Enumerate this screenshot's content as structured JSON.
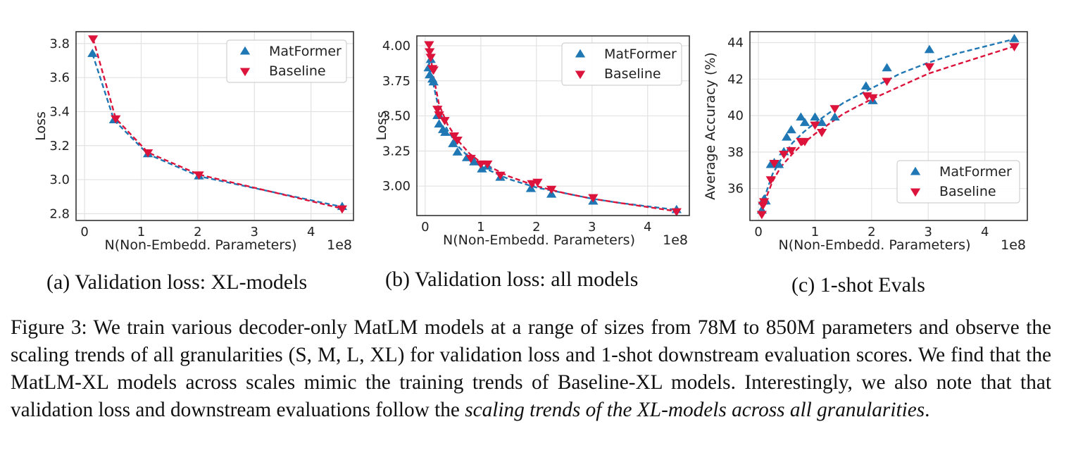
{
  "colors": {
    "matformer": "#1f77b4",
    "baseline": "#dc143c",
    "grid": "#e2e2e2",
    "frame": "#333333"
  },
  "chart_data": [
    {
      "type": "line",
      "marker_style": "scatter with dashed fit",
      "xlabel": "N(Non-Embedd. Parameters)",
      "x_offset_text": "1e8",
      "ylabel": "Loss",
      "xlim": [
        -0.15,
        4.75
      ],
      "ylim": [
        2.76,
        3.87
      ],
      "xticks": [
        0,
        1,
        2,
        3,
        4
      ],
      "yticks": [
        2.8,
        3.0,
        3.2,
        3.4,
        3.6,
        3.8
      ],
      "ytick_labels": [
        "2.8",
        "3.0",
        "3.2",
        "3.4",
        "3.6",
        "3.8"
      ],
      "grid": true,
      "legend": "top-right",
      "series": [
        {
          "name": "MatFormer",
          "marker": "triangle-up",
          "points": [
            [
              0.14,
              3.74
            ],
            [
              0.52,
              3.35
            ],
            [
              1.12,
              3.15
            ],
            [
              2.02,
              3.02
            ],
            [
              4.55,
              2.84
            ]
          ],
          "fit": [
            [
              0.14,
              3.74
            ],
            [
              0.52,
              3.35
            ],
            [
              1.12,
              3.15
            ],
            [
              2.02,
              3.02
            ],
            [
              4.55,
              2.84
            ]
          ]
        },
        {
          "name": "Baseline",
          "marker": "triangle-down",
          "points": [
            [
              0.15,
              3.83
            ],
            [
              0.55,
              3.36
            ],
            [
              1.12,
              3.16
            ],
            [
              2.02,
              3.03
            ],
            [
              4.55,
              2.83
            ]
          ],
          "fit": [
            [
              0.15,
              3.83
            ],
            [
              0.55,
              3.36
            ],
            [
              1.12,
              3.16
            ],
            [
              2.02,
              3.03
            ],
            [
              4.55,
              2.83
            ]
          ]
        }
      ]
    },
    {
      "type": "line",
      "marker_style": "scatter with dashed fit",
      "xlabel": "N(Non-Embedd. Parameters)",
      "x_offset_text": "1e8",
      "ylabel": "Loss",
      "xlim": [
        -0.15,
        4.75
      ],
      "ylim": [
        2.79,
        4.07
      ],
      "xticks": [
        0,
        1,
        2,
        3,
        4
      ],
      "yticks": [
        3.0,
        3.25,
        3.5,
        3.75,
        4.0
      ],
      "ytick_labels": [
        "3.00",
        "3.25",
        "3.50",
        "3.75",
        "4.00"
      ],
      "grid": true,
      "legend": "top-right",
      "series": [
        {
          "name": "MatFormer",
          "marker": "triangle-up",
          "points": [
            [
              0.06,
              3.84
            ],
            [
              0.08,
              3.79
            ],
            [
              0.1,
              3.9
            ],
            [
              0.13,
              3.76
            ],
            [
              0.15,
              3.74
            ],
            [
              0.22,
              3.5
            ],
            [
              0.25,
              3.44
            ],
            [
              0.32,
              3.4
            ],
            [
              0.36,
              3.38
            ],
            [
              0.5,
              3.3
            ],
            [
              0.58,
              3.24
            ],
            [
              0.75,
              3.2
            ],
            [
              0.88,
              3.17
            ],
            [
              1.02,
              3.12
            ],
            [
              1.12,
              3.14
            ],
            [
              1.35,
              3.06
            ],
            [
              1.9,
              2.98
            ],
            [
              2.27,
              2.94
            ],
            [
              3.02,
              2.89
            ],
            [
              4.52,
              2.83
            ]
          ],
          "fit": [
            [
              0.06,
              3.9
            ],
            [
              0.15,
              3.72
            ],
            [
              0.25,
              3.54
            ],
            [
              0.4,
              3.4
            ],
            [
              0.6,
              3.28
            ],
            [
              0.8,
              3.2
            ],
            [
              1.0,
              3.14
            ],
            [
              1.5,
              3.05
            ],
            [
              2.0,
              2.99
            ],
            [
              2.5,
              2.95
            ],
            [
              3.0,
              2.91
            ],
            [
              3.5,
              2.88
            ],
            [
              4.52,
              2.83
            ]
          ]
        },
        {
          "name": "Baseline",
          "marker": "triangle-down",
          "points": [
            [
              0.07,
              4.01
            ],
            [
              0.08,
              3.96
            ],
            [
              0.1,
              3.92
            ],
            [
              0.13,
              3.84
            ],
            [
              0.15,
              3.83
            ],
            [
              0.22,
              3.55
            ],
            [
              0.25,
              3.51
            ],
            [
              0.35,
              3.47
            ],
            [
              0.52,
              3.36
            ],
            [
              0.58,
              3.33
            ],
            [
              0.82,
              3.2
            ],
            [
              1.0,
              3.16
            ],
            [
              1.12,
              3.16
            ],
            [
              1.35,
              3.08
            ],
            [
              1.92,
              3.02
            ],
            [
              2.02,
              3.03
            ],
            [
              2.27,
              2.98
            ],
            [
              3.02,
              2.92
            ],
            [
              4.52,
              2.82
            ]
          ],
          "fit": [
            [
              0.07,
              4.0
            ],
            [
              0.15,
              3.78
            ],
            [
              0.25,
              3.58
            ],
            [
              0.4,
              3.44
            ],
            [
              0.6,
              3.32
            ],
            [
              0.8,
              3.23
            ],
            [
              1.0,
              3.17
            ],
            [
              1.5,
              3.07
            ],
            [
              2.0,
              3.0
            ],
            [
              2.5,
              2.95
            ],
            [
              3.0,
              2.91
            ],
            [
              3.5,
              2.88
            ],
            [
              4.52,
              2.82
            ]
          ]
        }
      ]
    },
    {
      "type": "line",
      "marker_style": "scatter with dashed fit",
      "xlabel": "N(Non-Embedd. Parameters)",
      "x_offset_text": "1e8",
      "ylabel": "Average Accuracy (%)",
      "xlim": [
        -0.15,
        4.75
      ],
      "ylim": [
        34.25,
        44.6
      ],
      "xticks": [
        0,
        1,
        2,
        3,
        4
      ],
      "yticks": [
        36,
        38,
        40,
        42,
        44
      ],
      "ytick_labels": [
        "36",
        "38",
        "40",
        "42",
        "44"
      ],
      "grid": true,
      "legend": "bottom-right",
      "series": [
        {
          "name": "MatFormer",
          "marker": "triangle-up",
          "points": [
            [
              0.06,
              34.8
            ],
            [
              0.08,
              35.3
            ],
            [
              0.1,
              35.4
            ],
            [
              0.13,
              35.3
            ],
            [
              0.22,
              37.3
            ],
            [
              0.28,
              37.4
            ],
            [
              0.36,
              37.3
            ],
            [
              0.45,
              38.0
            ],
            [
              0.5,
              38.8
            ],
            [
              0.58,
              39.2
            ],
            [
              0.75,
              39.9
            ],
            [
              0.82,
              39.6
            ],
            [
              1.0,
              39.9
            ],
            [
              1.12,
              39.6
            ],
            [
              1.35,
              39.9
            ],
            [
              1.9,
              41.6
            ],
            [
              2.02,
              40.8
            ],
            [
              2.27,
              42.6
            ],
            [
              3.02,
              43.6
            ],
            [
              4.52,
              44.2
            ]
          ],
          "fit": [
            [
              0.06,
              35.0
            ],
            [
              0.15,
              35.9
            ],
            [
              0.25,
              36.8
            ],
            [
              0.4,
              37.6
            ],
            [
              0.6,
              38.5
            ],
            [
              0.8,
              39.1
            ],
            [
              1.0,
              39.6
            ],
            [
              1.5,
              40.7
            ],
            [
              2.0,
              41.5
            ],
            [
              2.5,
              42.3
            ],
            [
              3.0,
              42.9
            ],
            [
              3.5,
              43.4
            ],
            [
              4.52,
              44.2
            ]
          ]
        },
        {
          "name": "Baseline",
          "marker": "triangle-down",
          "points": [
            [
              0.06,
              34.6
            ],
            [
              0.08,
              35.1
            ],
            [
              0.1,
              35.3
            ],
            [
              0.22,
              36.5
            ],
            [
              0.28,
              37.4
            ],
            [
              0.45,
              37.9
            ],
            [
              0.58,
              38.1
            ],
            [
              0.75,
              38.6
            ],
            [
              0.82,
              38.6
            ],
            [
              1.0,
              39.5
            ],
            [
              1.12,
              39.1
            ],
            [
              1.35,
              40.4
            ],
            [
              1.92,
              41.1
            ],
            [
              2.02,
              41.0
            ],
            [
              2.27,
              41.9
            ],
            [
              3.02,
              42.7
            ],
            [
              4.52,
              43.8
            ]
          ],
          "fit": [
            [
              0.06,
              34.8
            ],
            [
              0.15,
              35.6
            ],
            [
              0.25,
              36.4
            ],
            [
              0.4,
              37.2
            ],
            [
              0.6,
              37.9
            ],
            [
              0.8,
              38.5
            ],
            [
              1.0,
              39.0
            ],
            [
              1.5,
              40.1
            ],
            [
              2.0,
              40.9
            ],
            [
              2.5,
              41.6
            ],
            [
              3.0,
              42.3
            ],
            [
              3.5,
              42.8
            ],
            [
              4.52,
              43.8
            ]
          ]
        }
      ]
    }
  ],
  "subcaptions": [
    "(a) Validation loss: XL-models",
    "(b) Validation loss: all models",
    "(c) 1-shot Evals"
  ],
  "caption": {
    "lead": "Figure 3: We train various decoder-only MatLM models at a range of sizes from 78M to 850M parameters and observe the scaling trends of all granularities (S, M, L, XL) for validation loss and 1-shot downstream evaluation scores. We find that the MatLM-XL models across scales mimic the training trends of Baseline-XL models. Interestingly, we also note that that validation loss and downstream evaluations follow the ",
    "emphasis": "scaling trends of the XL-models across all granularities",
    "tail": "."
  }
}
